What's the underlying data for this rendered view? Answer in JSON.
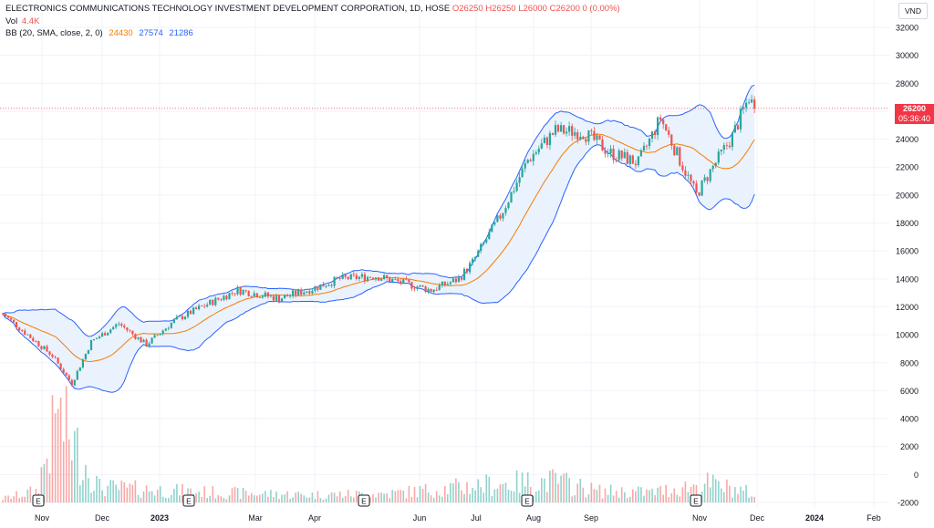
{
  "legend": {
    "title": "ELECTRONICS COMMUNICATIONS TECHNOLOGY INVESTMENT DEVELOPMENT CORPORATION, 1D, HOSE",
    "open": "O26250",
    "high": "H26250",
    "low": "L26000",
    "close": "C26200",
    "change": "0 (0.00%)",
    "vol_label": "Vol",
    "vol_value": "4.4K",
    "bb_label": "BB (20, SMA, close, 2, 0)",
    "bb_basis": "24430",
    "bb_upper": "27574",
    "bb_lower": "21286"
  },
  "currency": "VND",
  "last_price_tag": {
    "price": "26200",
    "countdown": "05:36:40"
  },
  "colors": {
    "up": "#26a69a",
    "down": "#ef5350",
    "basis": "#f57c00",
    "band": "#2962ff",
    "band_fill": "#eaf2fd"
  },
  "chart_data": {
    "type": "candlestick",
    "y_axis": {
      "min": -2000,
      "max": 32000,
      "ticks": [
        -2000,
        0,
        2000,
        4000,
        6000,
        8000,
        10000,
        12000,
        14000,
        16000,
        18000,
        20000,
        22000,
        24000,
        26000,
        28000,
        30000,
        32000
      ]
    },
    "x_axis": {
      "labels": [
        "Nov",
        "Dec",
        "2023",
        "Mar",
        "Apr",
        "Jun",
        "Jul",
        "Aug",
        "Sep",
        "Nov",
        "Dec",
        "2024",
        "Feb"
      ]
    },
    "event_markers": [
      "E",
      "E",
      "E",
      "E",
      "E"
    ],
    "last_price": 26200,
    "price_keypoints": [
      [
        0,
        11500
      ],
      [
        12,
        9500
      ],
      [
        18,
        8500
      ],
      [
        25,
        6500
      ],
      [
        32,
        9500
      ],
      [
        42,
        10800
      ],
      [
        52,
        9300
      ],
      [
        62,
        11000
      ],
      [
        72,
        12000
      ],
      [
        85,
        13200
      ],
      [
        100,
        12600
      ],
      [
        112,
        13300
      ],
      [
        122,
        14000
      ],
      [
        135,
        14200
      ],
      [
        145,
        13700
      ],
      [
        155,
        13200
      ],
      [
        165,
        14000
      ],
      [
        170,
        15200
      ],
      [
        180,
        18500
      ],
      [
        190,
        22500
      ],
      [
        200,
        24600
      ],
      [
        210,
        24500
      ],
      [
        220,
        23000
      ],
      [
        230,
        22300
      ],
      [
        238,
        25500
      ],
      [
        245,
        22500
      ],
      [
        251,
        20000
      ],
      [
        256,
        21700
      ],
      [
        264,
        24200
      ],
      [
        270,
        27000
      ],
      [
        272,
        26200
      ]
    ],
    "volume_keypoints": [
      [
        0,
        300
      ],
      [
        12,
        900
      ],
      [
        20,
        6700
      ],
      [
        35,
        1200
      ],
      [
        75,
        800
      ],
      [
        110,
        600
      ],
      [
        140,
        700
      ],
      [
        175,
        1400
      ],
      [
        190,
        1600
      ],
      [
        200,
        1700
      ],
      [
        215,
        900
      ],
      [
        235,
        800
      ],
      [
        255,
        1500
      ],
      [
        270,
        800
      ],
      [
        272,
        500
      ]
    ]
  }
}
